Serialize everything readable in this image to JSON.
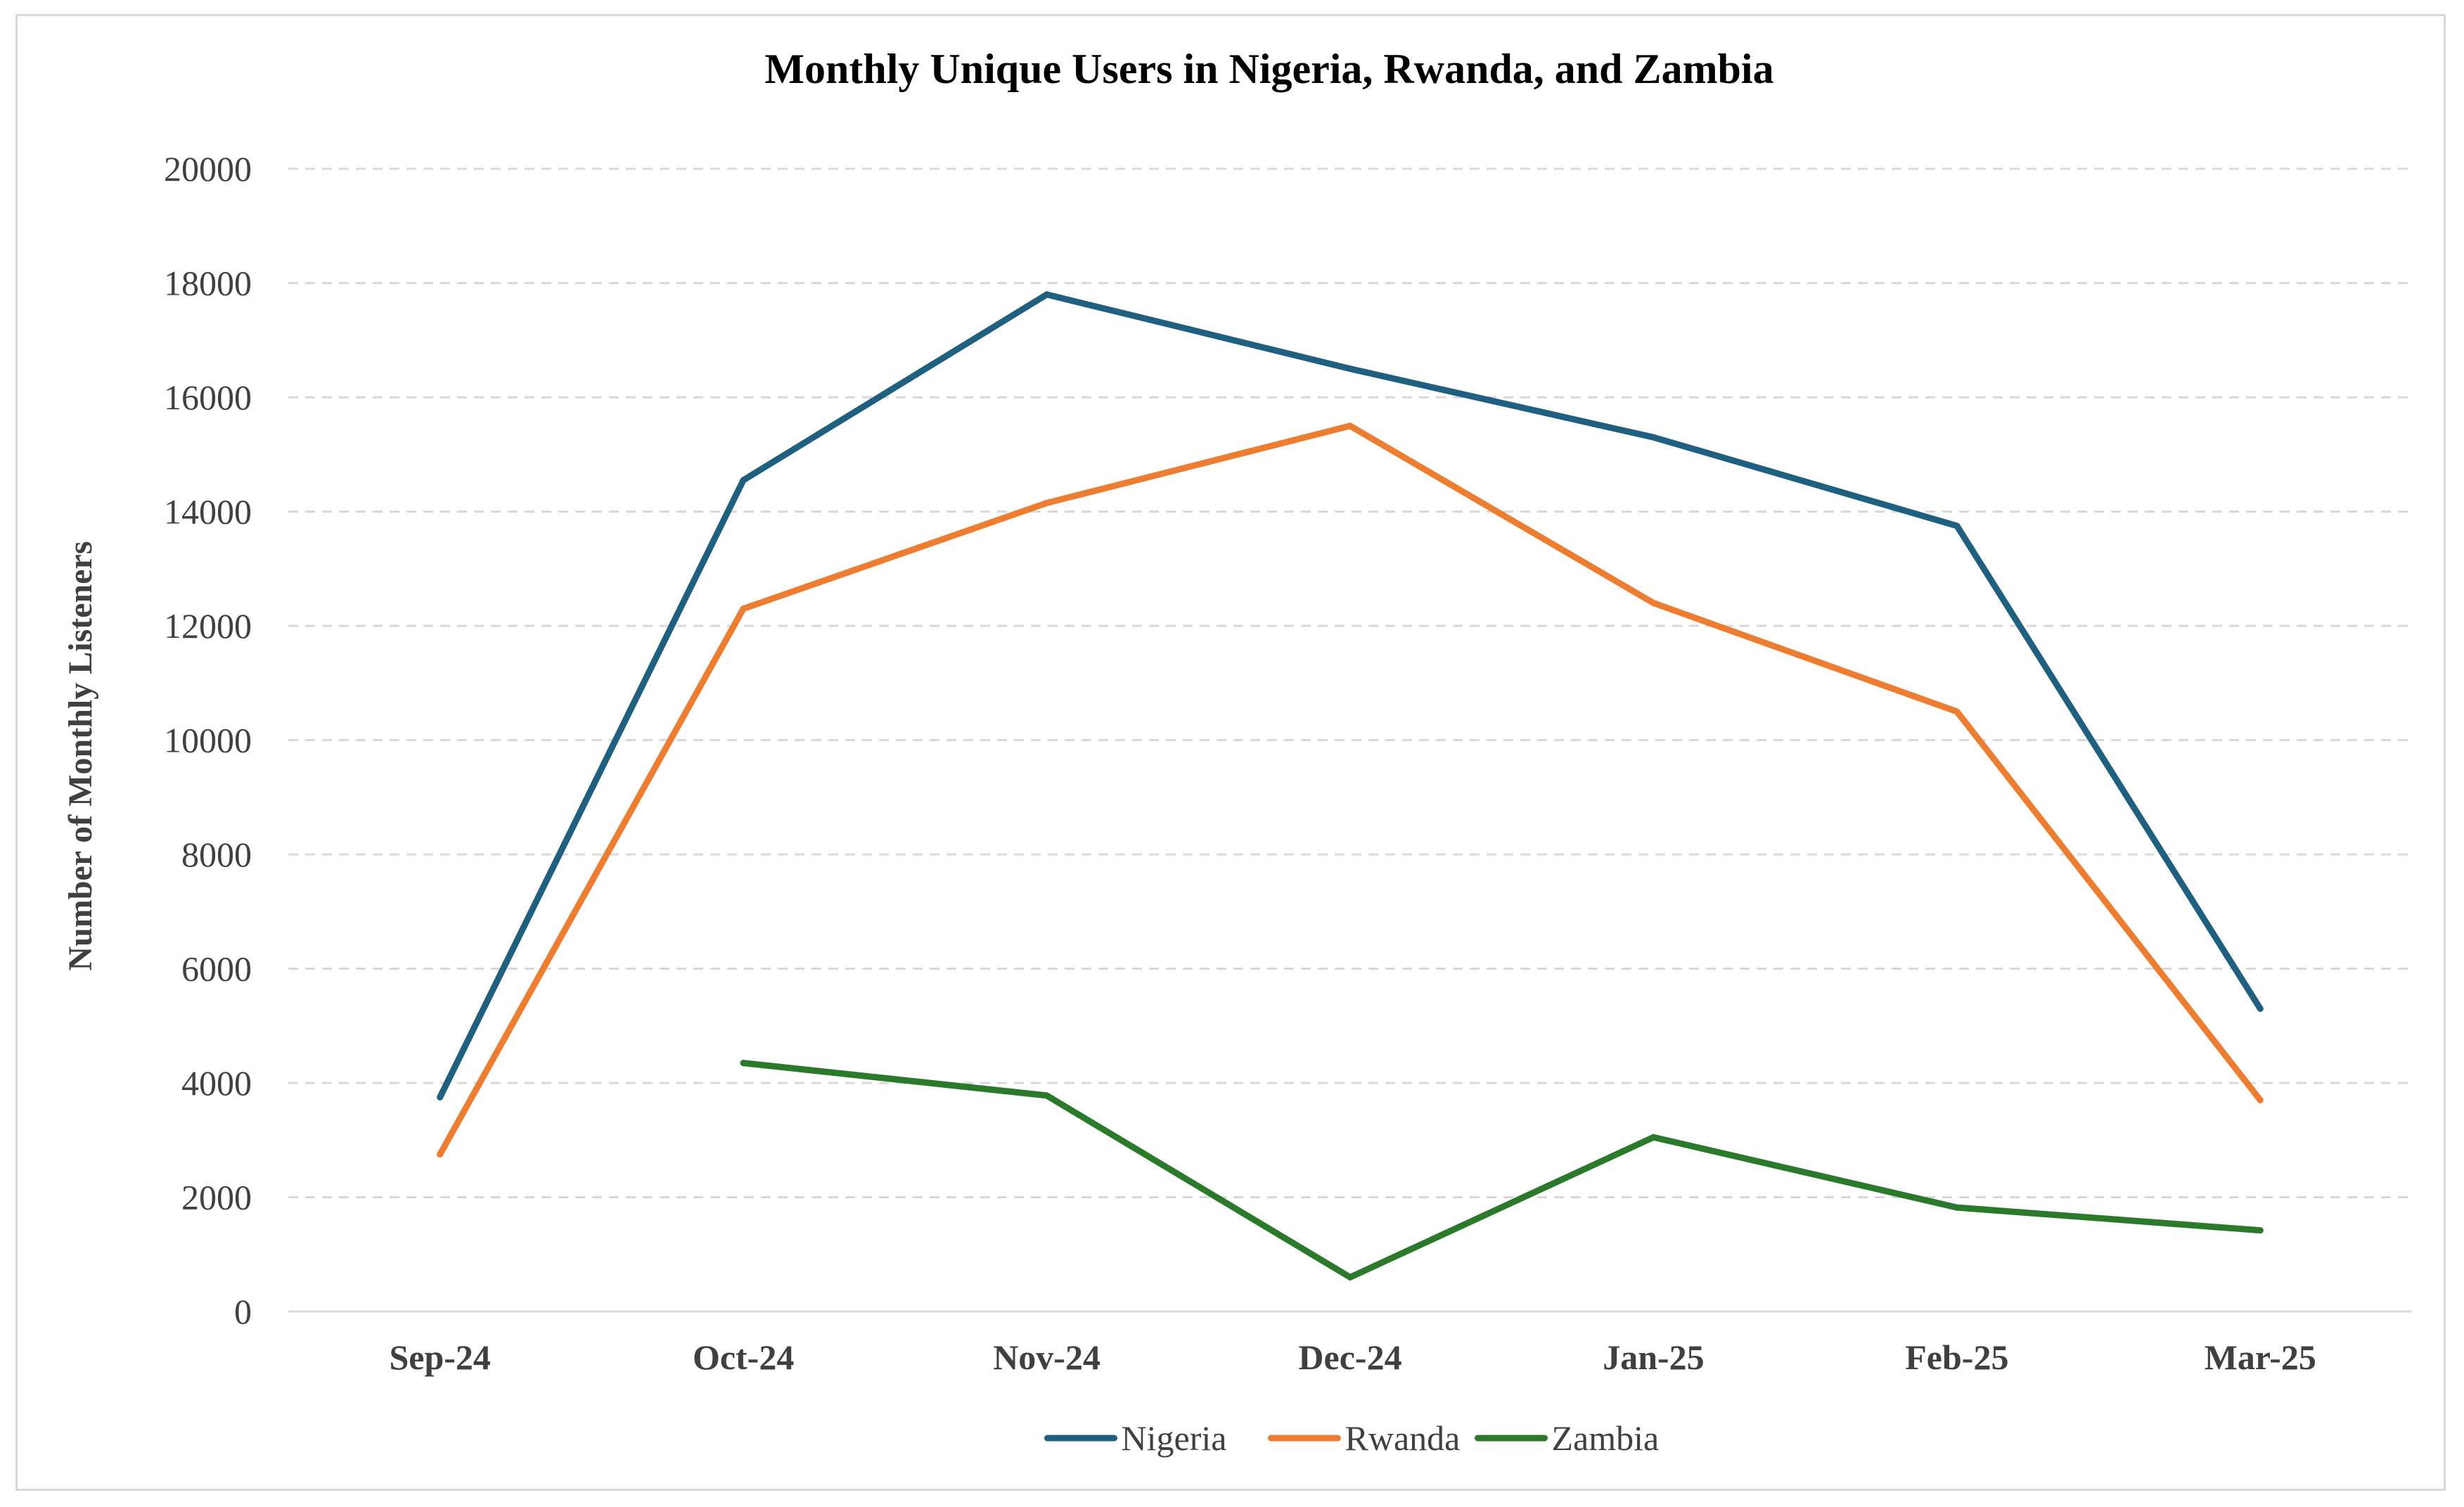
{
  "chart_data": {
    "type": "line",
    "title": "Monthly Unique Users in Nigeria, Rwanda, and Zambia",
    "xlabel": "",
    "ylabel": "Number of Monthly Listeners",
    "categories": [
      "Sep-24",
      "Oct-24",
      "Nov-24",
      "Dec-24",
      "Jan-25",
      "Feb-25",
      "Mar-25"
    ],
    "ylim": [
      0,
      20000
    ],
    "yticks": [
      0,
      2000,
      4000,
      6000,
      8000,
      10000,
      12000,
      14000,
      16000,
      18000,
      20000
    ],
    "ytick_labels": [
      "0",
      "2000",
      "4000",
      "6000",
      "8000",
      "10000",
      "12000",
      "14000",
      "16000",
      "18000",
      "20000"
    ],
    "grid": true,
    "legend_position": "bottom",
    "series": [
      {
        "name": "Nigeria",
        "color": "#1f5f7f",
        "values": [
          3750,
          14550,
          17800,
          16500,
          15300,
          13750,
          5300
        ]
      },
      {
        "name": "Rwanda",
        "color": "#ed7d31",
        "values": [
          2750,
          12300,
          14150,
          15500,
          12400,
          10500,
          3700
        ]
      },
      {
        "name": "Zambia",
        "color": "#2b7a2b",
        "values": [
          null,
          4350,
          3780,
          600,
          3050,
          1820,
          1420
        ]
      }
    ]
  }
}
